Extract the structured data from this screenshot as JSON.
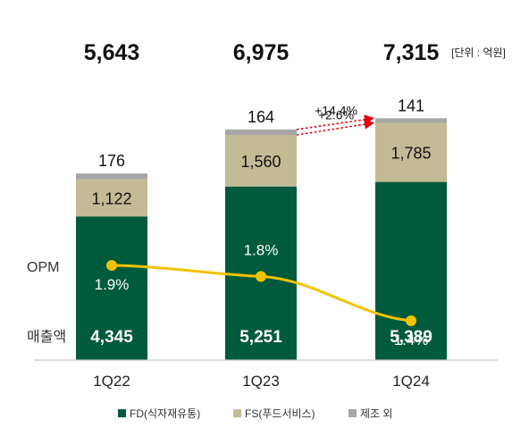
{
  "chart_data": {
    "type": "bar",
    "subtype": "stacked",
    "categories": [
      "1Q22",
      "1Q23",
      "1Q24"
    ],
    "totals": [
      "5,643",
      "6,975",
      "7,315"
    ],
    "unit": "[단위 : 억원]",
    "series": [
      {
        "name": "FD(식자재유통)",
        "color": "#005a3c",
        "values": [
          4345,
          5251,
          5389
        ],
        "labels": [
          "4,345",
          "5,251",
          "5,389"
        ]
      },
      {
        "name": "FS(푸드서비스)",
        "color": "#c2bb95",
        "values": [
          1122,
          1560,
          1785
        ],
        "labels": [
          "1,122",
          "1,560",
          "1,785"
        ]
      },
      {
        "name": "제조 외",
        "color": "#a6a6a6",
        "values": [
          176,
          164,
          141
        ],
        "labels": [
          "176",
          "164",
          "141"
        ]
      }
    ],
    "opm": {
      "name": "OPM",
      "color": "#f2c200",
      "values": [
        1.9,
        1.8,
        1.4
      ],
      "labels": [
        "1.9%",
        "1.8%",
        "1.4%"
      ]
    },
    "side_labels": {
      "opm": "OPM",
      "revenue": "매출액"
    },
    "growth": [
      {
        "label": "+14.4%",
        "series_index": 2
      },
      {
        "label": "+2.6%",
        "series_index": 1
      }
    ],
    "growth_color": "#e3000f"
  }
}
